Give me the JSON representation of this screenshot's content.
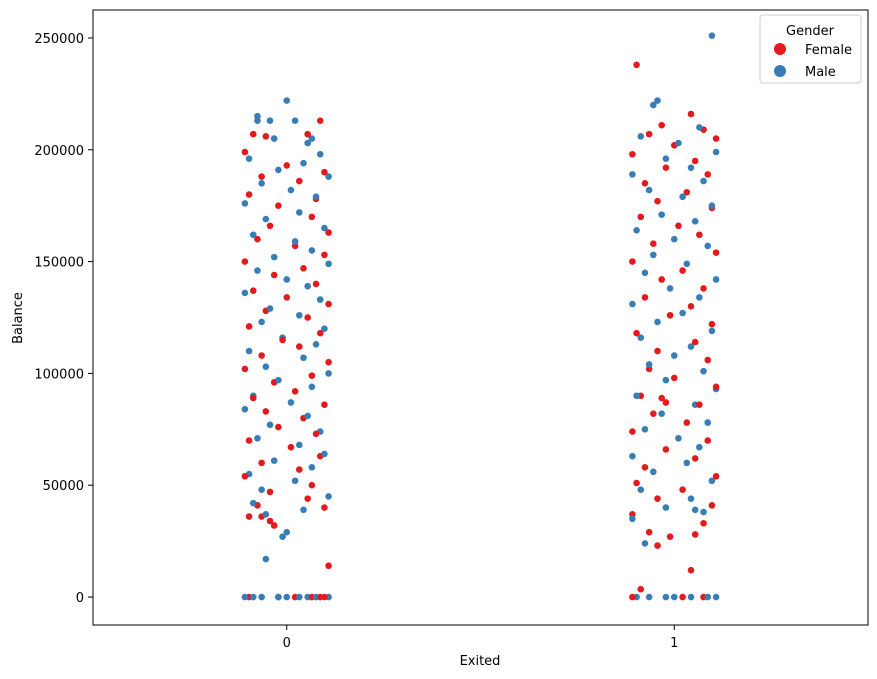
{
  "chart_data": {
    "type": "scatter",
    "subtype": "stripplot",
    "title": "",
    "xlabel": "Exited",
    "ylabel": "Balance",
    "categories": [
      "0",
      "1"
    ],
    "ylim": [
      -12500,
      262500
    ],
    "yticks": [
      0,
      50000,
      100000,
      150000,
      200000,
      250000
    ],
    "ytick_labels": [
      "0",
      "50000",
      "100000",
      "150000",
      "200000",
      "250000"
    ],
    "grid": false,
    "legend": {
      "title": "Gender",
      "placement": "top-right",
      "entries": [
        {
          "name": "Female",
          "color": "#e41a1c"
        },
        {
          "name": "Male",
          "color": "#377eb8"
        }
      ]
    },
    "series": [
      {
        "name": "Female",
        "color": "#e41a1c",
        "points_exited_0": [
          [
            0.08,
            213000
          ],
          [
            -0.08,
            207000
          ],
          [
            -0.05,
            206000
          ],
          [
            0.05,
            207000
          ],
          [
            -0.1,
            199000
          ],
          [
            0.0,
            193000
          ],
          [
            0.09,
            190000
          ],
          [
            -0.06,
            188000
          ],
          [
            0.03,
            186000
          ],
          [
            -0.09,
            180000
          ],
          [
            0.07,
            178000
          ],
          [
            -0.02,
            175000
          ],
          [
            0.06,
            170000
          ],
          [
            -0.04,
            166000
          ],
          [
            0.1,
            163000
          ],
          [
            -0.07,
            160000
          ],
          [
            0.02,
            157000
          ],
          [
            0.09,
            153000
          ],
          [
            -0.1,
            150000
          ],
          [
            0.04,
            147000
          ],
          [
            -0.03,
            144000
          ],
          [
            0.07,
            140000
          ],
          [
            -0.08,
            137000
          ],
          [
            0.0,
            134000
          ],
          [
            0.1,
            131000
          ],
          [
            -0.05,
            128000
          ],
          [
            0.05,
            125000
          ],
          [
            -0.09,
            121000
          ],
          [
            0.08,
            118000
          ],
          [
            -0.01,
            115000
          ],
          [
            0.03,
            112000
          ],
          [
            -0.06,
            108000
          ],
          [
            0.1,
            105000
          ],
          [
            -0.1,
            102000
          ],
          [
            0.06,
            99000
          ],
          [
            -0.03,
            96000
          ],
          [
            0.02,
            92000
          ],
          [
            -0.08,
            89000
          ],
          [
            0.09,
            86000
          ],
          [
            -0.05,
            83000
          ],
          [
            0.04,
            80000
          ],
          [
            -0.02,
            76000
          ],
          [
            0.07,
            73000
          ],
          [
            -0.09,
            70000
          ],
          [
            0.01,
            67000
          ],
          [
            0.08,
            63000
          ],
          [
            -0.06,
            60000
          ],
          [
            0.03,
            57000
          ],
          [
            -0.1,
            54000
          ],
          [
            0.06,
            50000
          ],
          [
            -0.04,
            47000
          ],
          [
            0.05,
            44000
          ],
          [
            -0.07,
            41000
          ],
          [
            0.09,
            40000
          ],
          [
            -0.06,
            36000
          ],
          [
            -0.09,
            36000
          ],
          [
            -0.04,
            34000
          ],
          [
            -0.03,
            32000
          ],
          [
            0.1,
            14000
          ],
          [
            0.08,
            0
          ],
          [
            0.06,
            0
          ],
          [
            0.09,
            0
          ],
          [
            -0.09,
            0
          ],
          [
            -0.02,
            0
          ],
          [
            0.02,
            0
          ]
        ],
        "points_exited_1": [
          [
            -0.09,
            238000
          ],
          [
            0.04,
            216000
          ],
          [
            -0.03,
            211000
          ],
          [
            0.07,
            209000
          ],
          [
            -0.06,
            207000
          ],
          [
            0.1,
            205000
          ],
          [
            0.0,
            202000
          ],
          [
            -0.1,
            198000
          ],
          [
            0.05,
            195000
          ],
          [
            -0.02,
            192000
          ],
          [
            0.08,
            189000
          ],
          [
            -0.07,
            185000
          ],
          [
            0.03,
            181000
          ],
          [
            -0.04,
            177000
          ],
          [
            0.09,
            174000
          ],
          [
            -0.08,
            170000
          ],
          [
            0.01,
            166000
          ],
          [
            0.06,
            162000
          ],
          [
            -0.05,
            158000
          ],
          [
            0.1,
            154000
          ],
          [
            -0.1,
            150000
          ],
          [
            0.02,
            146000
          ],
          [
            -0.03,
            142000
          ],
          [
            0.07,
            138000
          ],
          [
            -0.07,
            134000
          ],
          [
            0.04,
            130000
          ],
          [
            -0.01,
            126000
          ],
          [
            0.09,
            122000
          ],
          [
            -0.09,
            118000
          ],
          [
            0.05,
            114000
          ],
          [
            -0.04,
            110000
          ],
          [
            0.08,
            106000
          ],
          [
            -0.06,
            102000
          ],
          [
            0.0,
            98000
          ],
          [
            0.1,
            94000
          ],
          [
            -0.08,
            90000
          ],
          [
            -0.03,
            89000
          ],
          [
            -0.02,
            87000
          ],
          [
            0.06,
            86000
          ],
          [
            -0.05,
            82000
          ],
          [
            0.03,
            78000
          ],
          [
            -0.1,
            74000
          ],
          [
            0.08,
            70000
          ],
          [
            -0.02,
            66000
          ],
          [
            0.05,
            62000
          ],
          [
            -0.07,
            58000
          ],
          [
            0.1,
            54000
          ],
          [
            -0.09,
            51000
          ],
          [
            0.02,
            48000
          ],
          [
            -0.04,
            44000
          ],
          [
            0.09,
            41000
          ],
          [
            -0.1,
            37000
          ],
          [
            0.07,
            33000
          ],
          [
            -0.06,
            29000
          ],
          [
            0.05,
            28000
          ],
          [
            -0.01,
            27000
          ],
          [
            -0.04,
            23000
          ],
          [
            0.04,
            12000
          ],
          [
            -0.08,
            3500
          ],
          [
            0.07,
            0
          ],
          [
            -0.1,
            0
          ],
          [
            0.02,
            0
          ]
        ]
      },
      {
        "name": "Male",
        "color": "#377eb8",
        "points_exited_0": [
          [
            0.0,
            222000
          ],
          [
            -0.07,
            215000
          ],
          [
            -0.07,
            213000
          ],
          [
            -0.04,
            213000
          ],
          [
            0.02,
            213000
          ],
          [
            0.06,
            205000
          ],
          [
            0.05,
            203000
          ],
          [
            -0.03,
            205000
          ],
          [
            0.08,
            198000
          ],
          [
            -0.09,
            196000
          ],
          [
            0.04,
            194000
          ],
          [
            -0.02,
            191000
          ],
          [
            0.1,
            188000
          ],
          [
            -0.06,
            185000
          ],
          [
            0.01,
            182000
          ],
          [
            0.07,
            179000
          ],
          [
            -0.1,
            176000
          ],
          [
            0.03,
            172000
          ],
          [
            -0.05,
            169000
          ],
          [
            0.09,
            165000
          ],
          [
            -0.08,
            162000
          ],
          [
            0.02,
            159000
          ],
          [
            0.06,
            155000
          ],
          [
            -0.03,
            152000
          ],
          [
            0.1,
            149000
          ],
          [
            -0.07,
            146000
          ],
          [
            0.0,
            142000
          ],
          [
            0.05,
            139000
          ],
          [
            -0.1,
            136000
          ],
          [
            0.08,
            133000
          ],
          [
            -0.04,
            129000
          ],
          [
            0.03,
            126000
          ],
          [
            -0.06,
            123000
          ],
          [
            0.09,
            120000
          ],
          [
            -0.01,
            116000
          ],
          [
            0.07,
            113000
          ],
          [
            -0.09,
            110000
          ],
          [
            0.04,
            107000
          ],
          [
            -0.05,
            103000
          ],
          [
            0.1,
            100000
          ],
          [
            -0.02,
            97000
          ],
          [
            0.06,
            94000
          ],
          [
            -0.08,
            90000
          ],
          [
            0.01,
            87000
          ],
          [
            -0.1,
            84000
          ],
          [
            0.05,
            81000
          ],
          [
            -0.04,
            77000
          ],
          [
            0.08,
            74000
          ],
          [
            -0.07,
            71000
          ],
          [
            0.03,
            68000
          ],
          [
            0.09,
            64000
          ],
          [
            -0.03,
            61000
          ],
          [
            0.06,
            58000
          ],
          [
            -0.09,
            55000
          ],
          [
            0.02,
            52000
          ],
          [
            -0.06,
            48000
          ],
          [
            0.1,
            45000
          ],
          [
            -0.08,
            42000
          ],
          [
            0.04,
            39000
          ],
          [
            -0.05,
            37000
          ],
          [
            0.0,
            29000
          ],
          [
            -0.01,
            27000
          ],
          [
            -0.05,
            17000
          ],
          [
            -0.1,
            0
          ],
          [
            -0.06,
            0
          ],
          [
            -0.02,
            0
          ],
          [
            0.03,
            0
          ],
          [
            0.07,
            0
          ],
          [
            0.1,
            0
          ],
          [
            0.05,
            0
          ],
          [
            -0.08,
            0
          ],
          [
            0.0,
            0
          ]
        ],
        "points_exited_1": [
          [
            0.09,
            251000
          ],
          [
            -0.04,
            222000
          ],
          [
            -0.05,
            220000
          ],
          [
            0.06,
            210000
          ],
          [
            -0.08,
            206000
          ],
          [
            0.01,
            203000
          ],
          [
            0.1,
            199000
          ],
          [
            -0.02,
            196000
          ],
          [
            0.04,
            192000
          ],
          [
            -0.1,
            189000
          ],
          [
            0.07,
            186000
          ],
          [
            -0.06,
            182000
          ],
          [
            0.02,
            179000
          ],
          [
            0.09,
            175000
          ],
          [
            -0.03,
            171000
          ],
          [
            0.05,
            168000
          ],
          [
            -0.09,
            164000
          ],
          [
            0.0,
            160000
          ],
          [
            0.08,
            157000
          ],
          [
            -0.05,
            153000
          ],
          [
            0.03,
            149000
          ],
          [
            -0.07,
            145000
          ],
          [
            0.1,
            142000
          ],
          [
            -0.01,
            138000
          ],
          [
            0.06,
            134000
          ],
          [
            -0.1,
            131000
          ],
          [
            0.02,
            127000
          ],
          [
            -0.04,
            123000
          ],
          [
            0.09,
            119000
          ],
          [
            -0.08,
            116000
          ],
          [
            0.04,
            112000
          ],
          [
            0.0,
            108000
          ],
          [
            -0.06,
            104000
          ],
          [
            0.07,
            101000
          ],
          [
            -0.02,
            97000
          ],
          [
            0.1,
            93000
          ],
          [
            -0.09,
            90000
          ],
          [
            0.05,
            86000
          ],
          [
            -0.03,
            82000
          ],
          [
            0.08,
            78000
          ],
          [
            -0.07,
            75000
          ],
          [
            0.01,
            71000
          ],
          [
            0.06,
            67000
          ],
          [
            -0.1,
            63000
          ],
          [
            0.03,
            60000
          ],
          [
            -0.05,
            56000
          ],
          [
            0.09,
            52000
          ],
          [
            -0.08,
            48000
          ],
          [
            0.04,
            44000
          ],
          [
            -0.02,
            40000
          ],
          [
            0.07,
            38000
          ],
          [
            -0.1,
            35000
          ],
          [
            0.05,
            39000
          ],
          [
            -0.07,
            24000
          ],
          [
            0.08,
            0
          ],
          [
            -0.06,
            0
          ],
          [
            -0.02,
            0
          ],
          [
            0.04,
            0
          ],
          [
            0.0,
            0
          ],
          [
            -0.09,
            0
          ],
          [
            0.1,
            0
          ]
        ]
      }
    ]
  }
}
